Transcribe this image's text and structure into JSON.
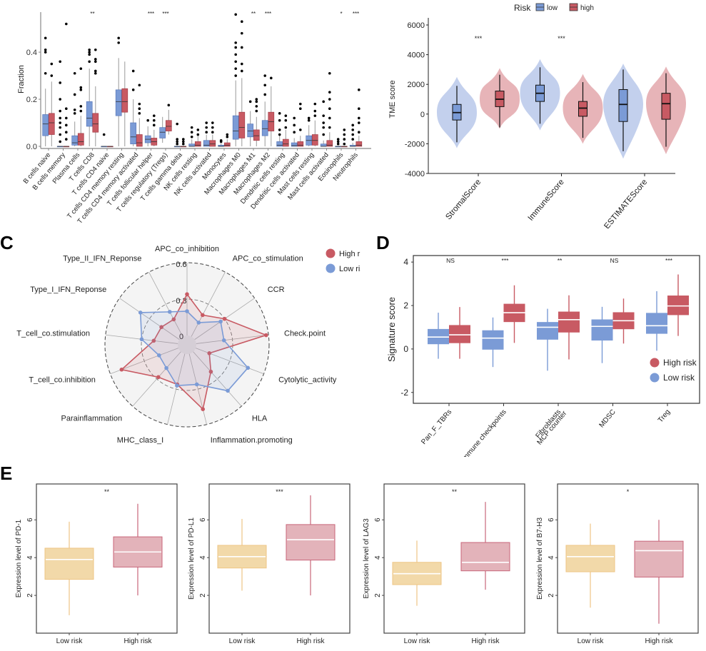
{
  "panel_labels": {
    "c": "C",
    "d": "D",
    "e": "E"
  },
  "chart_data": [
    {
      "id": "A",
      "type": "box",
      "title": "",
      "xlabel": "",
      "ylabel": "Fraction",
      "ylim": [
        0,
        0.57
      ],
      "yticks": [
        "0.0",
        "0.2",
        "0.4"
      ],
      "ytick_values": [
        0,
        0.2,
        0.4
      ],
      "colors": {
        "low": "#7b9bd6",
        "high": "#c85a63"
      },
      "categories": [
        {
          "name": "B cells naive",
          "sig": "",
          "low": [
            0,
            0.045,
            0.095,
            0.135,
            0.245
          ],
          "high": [
            0,
            0.05,
            0.1,
            0.14,
            0.275
          ],
          "low_out": [
            0.31,
            0.4,
            0.41,
            0.46
          ],
          "high_out": [
            0.3,
            0.35
          ]
        },
        {
          "name": "B cells memory",
          "sig": "",
          "low": [
            0,
            0,
            0,
            0,
            0
          ],
          "high": [
            0,
            0,
            0,
            0,
            0
          ],
          "low_out": [
            0.02,
            0.05,
            0.08,
            0.1,
            0.12,
            0.15,
            0.2,
            0.27,
            0.36
          ],
          "high_out": [
            0.03,
            0.06,
            0.09,
            0.12,
            0.16,
            0.52
          ]
        },
        {
          "name": "Plasma cells",
          "sig": "",
          "low": [
            0,
            0.005,
            0.015,
            0.045,
            0.105
          ],
          "high": [
            0,
            0.005,
            0.02,
            0.055,
            0.13
          ],
          "low_out": [
            0.14,
            0.155,
            0.22,
            0.31
          ],
          "high_out": [
            0.15,
            0.17,
            0.24,
            0.25,
            0.33
          ]
        },
        {
          "name": "T cells CD8",
          "sig": "**",
          "low": [
            0,
            0.085,
            0.12,
            0.19,
            0.33
          ],
          "high": [
            0,
            0.06,
            0.095,
            0.14,
            0.255
          ],
          "low_out": [
            0.36,
            0.39,
            0.4,
            0.41
          ],
          "high_out": [
            0.31,
            0.32,
            0.36,
            0.37,
            0.41
          ]
        },
        {
          "name": "T cells CD4 naive",
          "sig": "",
          "low": [
            0,
            0,
            0,
            0,
            0
          ],
          "high": [
            0,
            0,
            0,
            0,
            0
          ],
          "low_out": [
            0.05
          ],
          "high_out": []
        },
        {
          "name": "T cells CD4 memory resting",
          "sig": "",
          "low": [
            0,
            0.13,
            0.19,
            0.24,
            0.375
          ],
          "high": [
            0,
            0.145,
            0.19,
            0.245,
            0.36
          ],
          "low_out": [
            0.44,
            0.46
          ],
          "high_out": []
        },
        {
          "name": "T cells CD4 memory activated",
          "sig": "",
          "low": [
            0,
            0.01,
            0.04,
            0.1,
            0.2
          ],
          "high": [
            0,
            0,
            0.015,
            0.05,
            0.12
          ],
          "low_out": [
            0.24,
            0.32
          ],
          "high_out": [
            0.14,
            0.16,
            0.18,
            0.26
          ]
        },
        {
          "name": "T cells follicular helper",
          "sig": "***",
          "low": [
            0,
            0.015,
            0.03,
            0.045,
            0.085
          ],
          "high": [
            0,
            0.005,
            0.02,
            0.035,
            0.07
          ],
          "low_out": [
            0.11
          ],
          "high_out": [
            0.09,
            0.11,
            0.13
          ]
        },
        {
          "name": "T cells regulatory (Tregs)",
          "sig": "***",
          "low": [
            0.015,
            0.035,
            0.06,
            0.08,
            0.125
          ],
          "high": [
            0.05,
            0.065,
            0.085,
            0.11,
            0.155
          ],
          "low_out": [],
          "high_out": [
            0.175
          ]
        },
        {
          "name": "T cells gamma delta",
          "sig": "",
          "low": [
            0,
            0,
            0,
            0,
            0
          ],
          "high": [
            0,
            0,
            0,
            0,
            0
          ],
          "low_out": [
            0.01,
            0.02,
            0.03,
            0.095
          ],
          "high_out": [
            0.01,
            0.02,
            0.03
          ]
        },
        {
          "name": "NK cells resting",
          "sig": "",
          "low": [
            0,
            0,
            0,
            0.01,
            0.03
          ],
          "high": [
            0,
            0,
            0.005,
            0.02,
            0.045
          ],
          "low_out": [
            0.04,
            0.06,
            0.08
          ],
          "high_out": [
            0.05,
            0.07
          ]
        },
        {
          "name": "NK cells activated",
          "sig": "",
          "low": [
            0,
            0,
            0.005,
            0.025,
            0.05
          ],
          "high": [
            0,
            0,
            0.01,
            0.025,
            0.05
          ],
          "low_out": [
            0.06,
            0.08,
            0.1
          ],
          "high_out": [
            0.06,
            0.08,
            0.1
          ]
        },
        {
          "name": "Monocytes",
          "sig": "",
          "low": [
            0,
            0,
            0,
            0.005,
            0.015
          ],
          "high": [
            0,
            0,
            0.005,
            0.015,
            0.03
          ],
          "low_out": [
            0.02,
            0.025
          ],
          "high_out": [
            0.04,
            0.05
          ]
        },
        {
          "name": "Macrophages M0",
          "sig": "",
          "low": [
            0,
            0.03,
            0.065,
            0.13,
            0.28
          ],
          "high": [
            0,
            0.035,
            0.08,
            0.145,
            0.29
          ],
          "low_out": [
            0.3,
            0.33,
            0.36,
            0.39,
            0.42,
            0.44,
            0.56
          ],
          "high_out": [
            0.32,
            0.35,
            0.42,
            0.48,
            0.53
          ]
        },
        {
          "name": "Macrophages M1",
          "sig": "**",
          "low": [
            0,
            0.04,
            0.065,
            0.095,
            0.15
          ],
          "high": [
            0,
            0.025,
            0.045,
            0.07,
            0.125
          ],
          "low_out": [
            0.19
          ],
          "high_out": [
            0.15,
            0.17,
            0.19,
            0.2
          ]
        },
        {
          "name": "Macrophages M2",
          "sig": "***",
          "low": [
            0,
            0.045,
            0.075,
            0.11,
            0.19
          ],
          "high": [
            0,
            0.065,
            0.105,
            0.145,
            0.255
          ],
          "low_out": [
            0.22,
            0.26,
            0.3
          ],
          "high_out": [
            0.29
          ]
        },
        {
          "name": "Dendritic cells resting",
          "sig": "",
          "low": [
            0,
            0,
            0.005,
            0.02,
            0.05
          ],
          "high": [
            0,
            0,
            0.01,
            0.03,
            0.07
          ],
          "low_out": [
            0.05,
            0.07,
            0.11,
            0.14
          ],
          "high_out": [
            0.08,
            0.11,
            0.13
          ]
        },
        {
          "name": "Dendritic cells activated",
          "sig": "",
          "low": [
            0,
            0,
            0.003,
            0.015,
            0.035
          ],
          "high": [
            0,
            0,
            0.005,
            0.02,
            0.045
          ],
          "low_out": [
            0.06,
            0.09,
            0.12
          ],
          "high_out": [
            0.07,
            0.16,
            0.18
          ]
        },
        {
          "name": "Mast cells resting",
          "sig": "",
          "low": [
            0,
            0.005,
            0.025,
            0.045,
            0.09
          ],
          "high": [
            0,
            0.005,
            0.025,
            0.05,
            0.11
          ],
          "low_out": [
            0.11,
            0.12
          ],
          "high_out": [
            0.13,
            0.15,
            0.18
          ]
        },
        {
          "name": "Mast cells activated",
          "sig": "",
          "low": [
            0,
            0,
            0,
            0.01,
            0.025
          ],
          "high": [
            0,
            0,
            0.005,
            0.025,
            0.06
          ],
          "low_out": [
            0.05,
            0.08,
            0.1,
            0.13,
            0.19
          ],
          "high_out": [
            0.08,
            0.12,
            0.16,
            0.2,
            0.23,
            0.31
          ]
        },
        {
          "name": "Eosinophils",
          "sig": "*",
          "low": [
            0,
            0,
            0,
            0,
            0
          ],
          "high": [
            0,
            0,
            0,
            0,
            0
          ],
          "low_out": [
            0.01,
            0.02,
            0.03
          ],
          "high_out": [
            0.01,
            0.03,
            0.05,
            0.07
          ]
        },
        {
          "name": "Neutrophils",
          "sig": "***",
          "low": [
            0,
            0,
            0,
            0.005,
            0.015
          ],
          "high": [
            0,
            0,
            0.005,
            0.02,
            0.045
          ],
          "low_out": [
            0.03,
            0.05,
            0.07,
            0.09
          ],
          "high_out": [
            0.06,
            0.1,
            0.12,
            0.16,
            0.24
          ]
        }
      ]
    },
    {
      "id": "B",
      "type": "violin",
      "ylabel": "TME score",
      "ylim": [
        -4000,
        6000
      ],
      "yticks": [
        "6000",
        "4000",
        "2000",
        "0",
        "-2000",
        "-4000"
      ],
      "ytick_values": [
        6000,
        4000,
        2000,
        0,
        -2000,
        -4000
      ],
      "legend": {
        "title": "Risk",
        "items": [
          "low",
          "high"
        ],
        "position": "top"
      },
      "colors": {
        "low": "#7b9bd6",
        "high": "#c85a63",
        "low_violin": "#b9c8ea",
        "high_violin": "#e3a7ab"
      },
      "categories": [
        {
          "name": "StromalScore",
          "sig": "***",
          "low": [
            -1900,
            -400,
            100,
            650,
            1900
          ],
          "high": [
            -900,
            500,
            1000,
            1550,
            2650
          ],
          "low_range": [
            -2300,
            2500
          ],
          "high_range": [
            -1000,
            3100
          ]
        },
        {
          "name": "ImmuneScore",
          "sig": "***",
          "low": [
            -650,
            850,
            1400,
            1950,
            3150
          ],
          "high": [
            -1600,
            -150,
            400,
            850,
            2150
          ],
          "low_range": [
            -1100,
            3700
          ],
          "high_range": [
            -2000,
            2700
          ]
        },
        {
          "name": "ESTIMATEScore",
          "sig": "",
          "low": [
            -2500,
            -500,
            650,
            1650,
            3000
          ],
          "high": [
            -2200,
            -350,
            700,
            1400,
            2750
          ],
          "low_range": [
            -3000,
            3400
          ],
          "high_range": [
            -2700,
            3200
          ]
        }
      ]
    },
    {
      "id": "C",
      "type": "radar",
      "rlim": [
        0,
        0.6
      ],
      "ring_labels": [
        "0",
        "0.3",
        "0.6"
      ],
      "ring_values": [
        0,
        0.3,
        0.6
      ],
      "legend": {
        "items": [
          "High risk",
          "Low risk"
        ],
        "position": "top-right"
      },
      "colors": {
        "high": "#c85a63",
        "low": "#7b9bd6"
      },
      "axes": [
        "APC_co_inhibition",
        "APC_co_stimulation",
        "CCR",
        "Check.point",
        "Cytolytic_activity",
        "HLA",
        "Inflammation.promoting",
        "MHC_class_I",
        "Parainflammation",
        "T_cell_co.inhibition",
        "T_cell_co.stimulation",
        "Type_I_IFN_Reponse",
        "Type_II_IFN_Reponse"
      ],
      "series": [
        {
          "name": "High risk",
          "values": [
            0.34,
            0.2,
            0.3,
            0.58,
            0.12,
            0.22,
            0.47,
            0.26,
            0.28,
            0.5,
            0.2,
            0.18,
            0.16
          ]
        },
        {
          "name": "Low risk",
          "values": [
            0.2,
            0.13,
            0.26,
            0.23,
            0.46,
            0.43,
            0.26,
            0.27,
            0.18,
            0.17,
            0.3,
            0.39,
            0.23
          ]
        }
      ]
    },
    {
      "id": "D",
      "type": "box",
      "ylabel": "Signature score",
      "ylim": [
        -2.5,
        4.3
      ],
      "yticks": [
        "4",
        "2",
        "0",
        "-2"
      ],
      "ytick_values": [
        4,
        2,
        0,
        -2
      ],
      "legend": {
        "items": [
          "High risk",
          "Low risk"
        ],
        "position": "bottom-right"
      },
      "colors": {
        "high": "#c85a63",
        "low": "#7b9bd6"
      },
      "categories": [
        {
          "name": "Pan_F_TBRs",
          "label_lines": [
            "Pan_F_TBRs"
          ],
          "sig": "NS",
          "low": [
            -0.45,
            0.22,
            0.55,
            0.92,
            1.67
          ],
          "high": [
            -0.45,
            0.27,
            0.65,
            1.1,
            1.93
          ]
        },
        {
          "name": "Immune checkpoints",
          "label_lines": [
            "Immune checkpoints"
          ],
          "sig": "***",
          "low": [
            -0.83,
            -0.03,
            0.5,
            0.86,
            1.45
          ],
          "high": [
            0.28,
            1.24,
            1.67,
            2.08,
            2.93
          ]
        },
        {
          "name": "Fibroblasts MCP counter",
          "label_lines": [
            "Fibroblasts",
            "MCP counter"
          ],
          "sig": "**",
          "low": [
            -1.0,
            0.43,
            1.0,
            1.24,
            1.85
          ],
          "high": [
            -0.48,
            0.76,
            1.35,
            1.72,
            2.47
          ]
        },
        {
          "name": "MDSC",
          "label_lines": [
            "MDSC"
          ],
          "sig": "NS",
          "low": [
            -0.65,
            0.39,
            1.04,
            1.36,
            1.94
          ],
          "high": [
            0.25,
            0.91,
            1.3,
            1.69,
            2.32
          ]
        },
        {
          "name": "Treg",
          "label_lines": [
            "Treg"
          ],
          "sig": "***",
          "low": [
            -0.08,
            0.7,
            1.07,
            1.66,
            2.66
          ],
          "high": [
            0.6,
            1.56,
            1.98,
            2.46,
            3.43
          ]
        }
      ]
    },
    {
      "id": "E",
      "type": "box",
      "subplots": [
        {
          "ylabel": "Expression level of PD-1",
          "sig": "**",
          "categories": [
            "Low risk",
            "High risk"
          ],
          "boxes": [
            [
              0.95,
              2.85,
              3.9,
              4.5,
              5.9
            ],
            [
              2.0,
              3.5,
              4.3,
              5.1,
              6.85
            ]
          ]
        },
        {
          "ylabel": "Expression level of PD-L1",
          "sig": "***",
          "categories": [
            "Low risk",
            "High risk"
          ],
          "boxes": [
            [
              2.25,
              3.45,
              4.05,
              4.65,
              6.05
            ],
            [
              2.0,
              3.87,
              4.95,
              5.75,
              7.3
            ]
          ]
        },
        {
          "ylabel": "Expression level of LAG3",
          "sig": "**",
          "categories": [
            "Low risk",
            "High risk"
          ],
          "boxes": [
            [
              1.45,
              2.57,
              3.15,
              3.75,
              4.9
            ],
            [
              2.3,
              3.3,
              3.75,
              4.8,
              6.95
            ]
          ]
        },
        {
          "ylabel": "Expression level of B7-H3",
          "sig": "*",
          "categories": [
            "Low risk",
            "High risk"
          ],
          "boxes": [
            [
              1.35,
              3.25,
              4.05,
              4.65,
              5.8
            ],
            [
              0.5,
              2.97,
              4.37,
              4.87,
              6.0
            ]
          ]
        }
      ],
      "ylim": [
        0,
        7.9
      ],
      "yticks": [
        "2",
        "4",
        "6"
      ],
      "ytick_values": [
        2,
        4,
        6
      ],
      "colors": {
        "low": "#f2d9a9",
        "low_line": "#eec585",
        "high": "#e3b3ba",
        "high_line": "#c8667a"
      }
    }
  ]
}
